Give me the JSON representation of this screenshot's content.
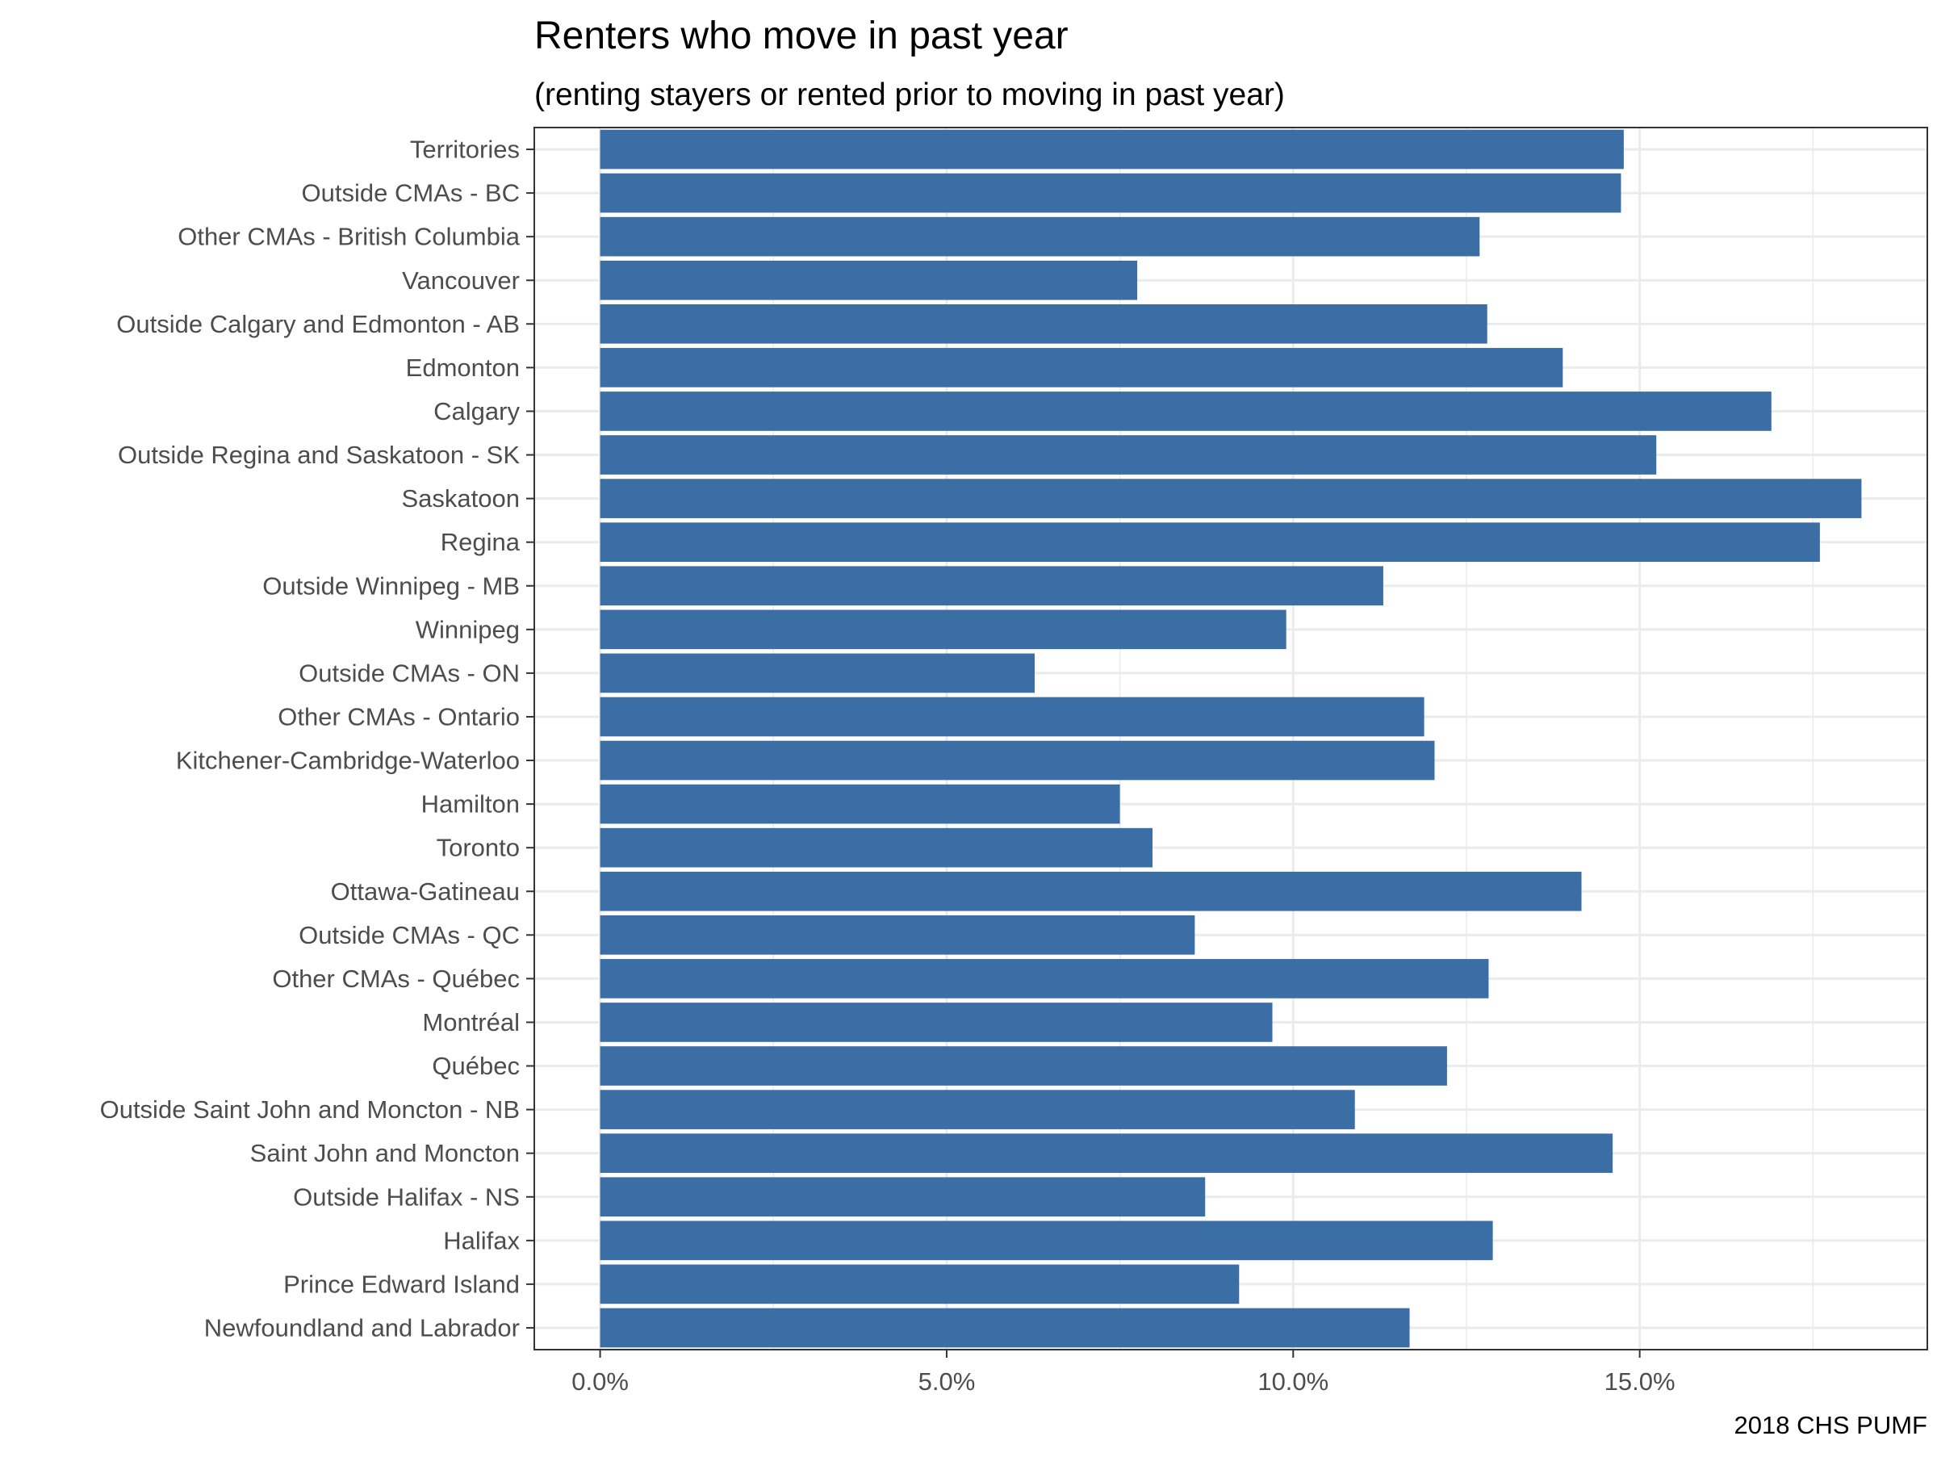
{
  "chart_data": {
    "type": "bar",
    "orientation": "horizontal",
    "title": "Renters who move in past year",
    "subtitle": "(renting stayers or rented prior to moving in past year)",
    "caption": "2018 CHS PUMF",
    "xlabel": "",
    "ylabel": "",
    "xlim": [
      -0.0095,
      0.1915
    ],
    "x_ticks": [
      0.0,
      0.05,
      0.1,
      0.15
    ],
    "x_tick_labels": [
      "0.0%",
      "5.0%",
      "10.0%",
      "15.0%"
    ],
    "grid": true,
    "bar_color": "#3a6ea5",
    "categories": [
      "Territories",
      "Outside CMAs - BC",
      "Other CMAs - British Columbia",
      "Vancouver",
      "Outside Calgary and Edmonton - AB",
      "Edmonton",
      "Calgary",
      "Outside Regina and Saskatoon - SK",
      "Saskatoon",
      "Regina",
      "Outside Winnipeg - MB",
      "Winnipeg",
      "Outside CMAs - ON",
      "Other CMAs - Ontario",
      "Kitchener-Cambridge-Waterloo",
      "Hamilton",
      "Toronto",
      "Ottawa-Gatineau",
      "Outside CMAs - QC",
      "Other CMAs - Québec",
      "Montréal",
      "Québec",
      "Outside Saint John and Moncton - NB",
      "Saint John and Moncton",
      "Outside Halifax - NS",
      "Halifax",
      "Prince Edward Island",
      "Newfoundland and Labrador"
    ],
    "values": [
      0.1477,
      0.1473,
      0.1269,
      0.0775,
      0.128,
      0.1389,
      0.169,
      0.1524,
      0.182,
      0.176,
      0.113,
      0.099,
      0.0627,
      0.1189,
      0.1204,
      0.075,
      0.0797,
      0.1416,
      0.0858,
      0.1282,
      0.097,
      0.1222,
      0.1089,
      0.1461,
      0.0873,
      0.1288,
      0.0922,
      0.1168
    ]
  }
}
